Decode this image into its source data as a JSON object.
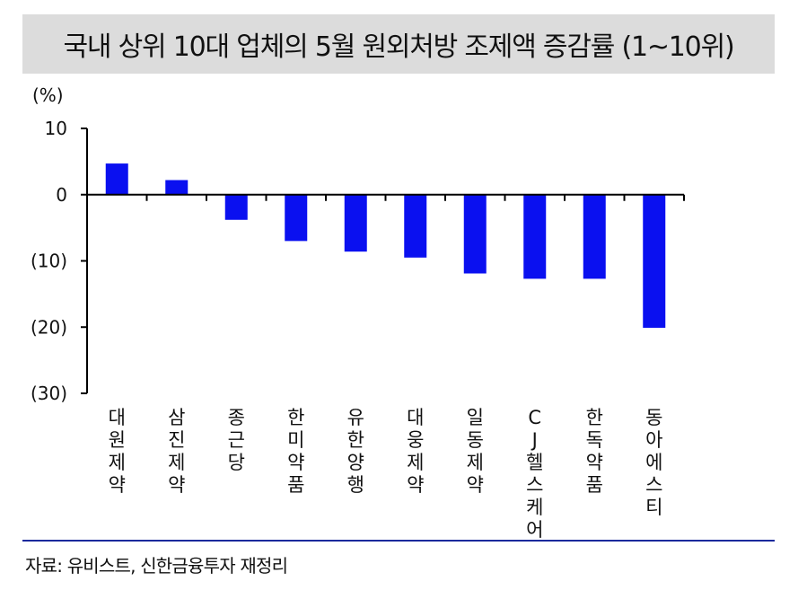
{
  "title": "국내 상위 10대 업체의 5월 원외처방 조제액 증감률 (1~10위)",
  "unit": "(%)",
  "source": "자료: 유비스트, 신한금융투자 재정리",
  "colors": {
    "bar": "#0a10f0",
    "axis": "#000000",
    "title_bg": "#dcdcdc",
    "rule": "#1a2a9c"
  },
  "chart_data": {
    "type": "bar",
    "title": "국내 상위 10대 업체의 5월 원외처방 조제액 증감률 (1~10위)",
    "xlabel": "",
    "ylabel": "(%)",
    "ylim": [
      -30,
      10
    ],
    "yticks": [
      10,
      0,
      -10,
      -20,
      -30
    ],
    "ytick_labels": [
      "10",
      "0",
      "(10)",
      "(20)",
      "(30)"
    ],
    "grid": false,
    "categories": [
      "대원제약",
      "삼진제약",
      "종근당",
      "한미약품",
      "유한양행",
      "대웅제약",
      "일동제약",
      "CJ헬스케어",
      "한독약품",
      "동아에스티"
    ],
    "values": [
      4.7,
      2.2,
      -3.8,
      -7.0,
      -8.6,
      -9.5,
      -11.9,
      -12.7,
      -12.7,
      -20.1
    ]
  }
}
